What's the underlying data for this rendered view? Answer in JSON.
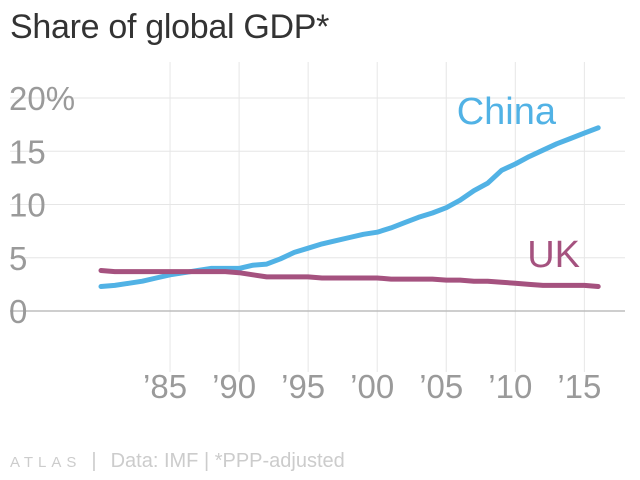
{
  "title": "Share of global GDP*",
  "footer": {
    "brand": "ATLAS",
    "separator": "|",
    "source": "Data: IMF | *PPP-adjusted"
  },
  "chart_data": {
    "type": "line",
    "title": "Share of global GDP*",
    "xlabel": "",
    "ylabel": "",
    "xlim": [
      1980,
      2016
    ],
    "ylim": [
      0,
      20
    ],
    "x_ticks": [
      1985,
      1990,
      1995,
      2000,
      2005,
      2010,
      2015
    ],
    "x_tick_labels": [
      "’85",
      "’90",
      "’95",
      "’00",
      "’05",
      "’10",
      "’15"
    ],
    "y_ticks": [
      0,
      5,
      10,
      15,
      20
    ],
    "y_tick_labels": [
      "0",
      "5",
      "10",
      "15",
      "20%"
    ],
    "grid": true,
    "legend": "inline labels",
    "x": [
      1980,
      1981,
      1982,
      1983,
      1984,
      1985,
      1986,
      1987,
      1988,
      1989,
      1990,
      1991,
      1992,
      1993,
      1994,
      1995,
      1996,
      1997,
      1998,
      1999,
      2000,
      2001,
      2002,
      2003,
      2004,
      2005,
      2006,
      2007,
      2008,
      2009,
      2010,
      2011,
      2012,
      2013,
      2014,
      2015,
      2016
    ],
    "series": [
      {
        "name": "China",
        "color": "#51b2e5",
        "values": [
          2.3,
          2.4,
          2.6,
          2.8,
          3.1,
          3.4,
          3.6,
          3.8,
          4.0,
          4.0,
          4.0,
          4.3,
          4.4,
          4.9,
          5.5,
          5.9,
          6.3,
          6.6,
          6.9,
          7.2,
          7.4,
          7.8,
          8.3,
          8.8,
          9.2,
          9.7,
          10.4,
          11.3,
          12.0,
          13.2,
          13.8,
          14.5,
          15.1,
          15.7,
          16.2,
          16.7,
          17.2
        ]
      },
      {
        "name": "UK",
        "color": "#a5527f",
        "values": [
          3.8,
          3.7,
          3.7,
          3.7,
          3.7,
          3.7,
          3.7,
          3.7,
          3.7,
          3.7,
          3.6,
          3.4,
          3.2,
          3.2,
          3.2,
          3.2,
          3.1,
          3.1,
          3.1,
          3.1,
          3.1,
          3.0,
          3.0,
          3.0,
          3.0,
          2.9,
          2.9,
          2.8,
          2.8,
          2.7,
          2.6,
          2.5,
          2.4,
          2.4,
          2.4,
          2.4,
          2.3
        ]
      }
    ]
  }
}
